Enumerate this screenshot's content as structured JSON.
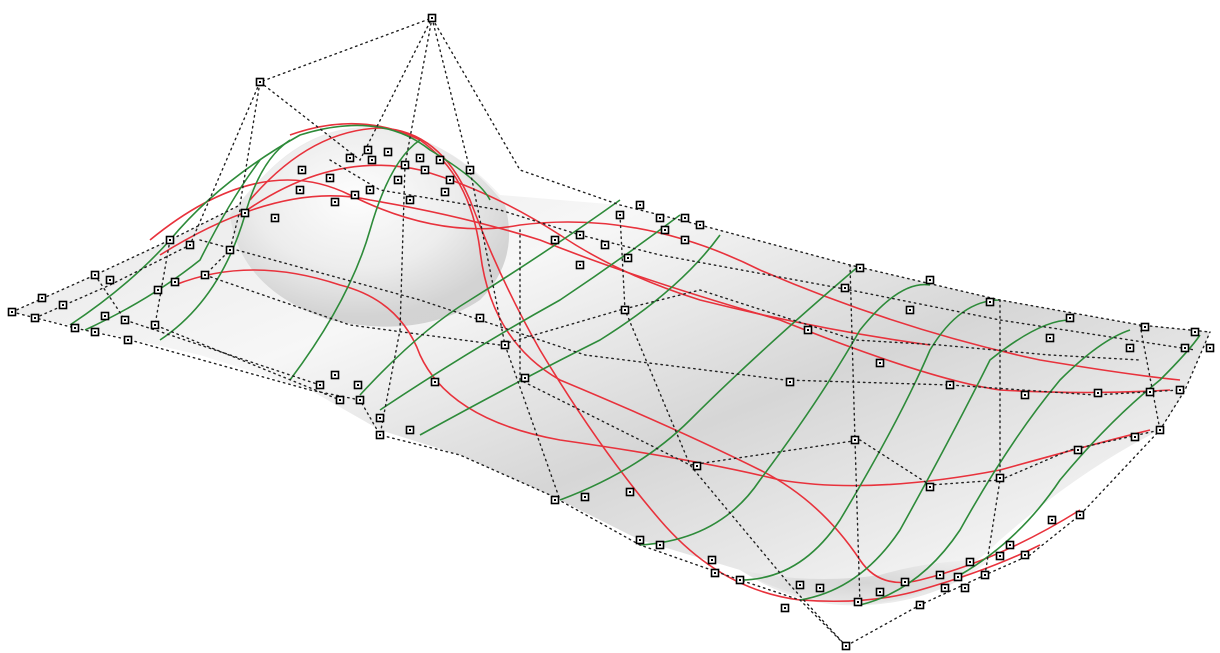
{
  "scene": {
    "description_visible_text": "",
    "colors": {
      "background": "#ffffff",
      "surface_light": "#f4f4f4",
      "surface_mid": "#d9d9d9",
      "surface_dark": "#bdbdbd",
      "isocurve_u": "#e8323c",
      "isocurve_v": "#2e8b3a",
      "control_point": "#000000"
    },
    "icons": [
      "control-point-icon"
    ]
  }
}
